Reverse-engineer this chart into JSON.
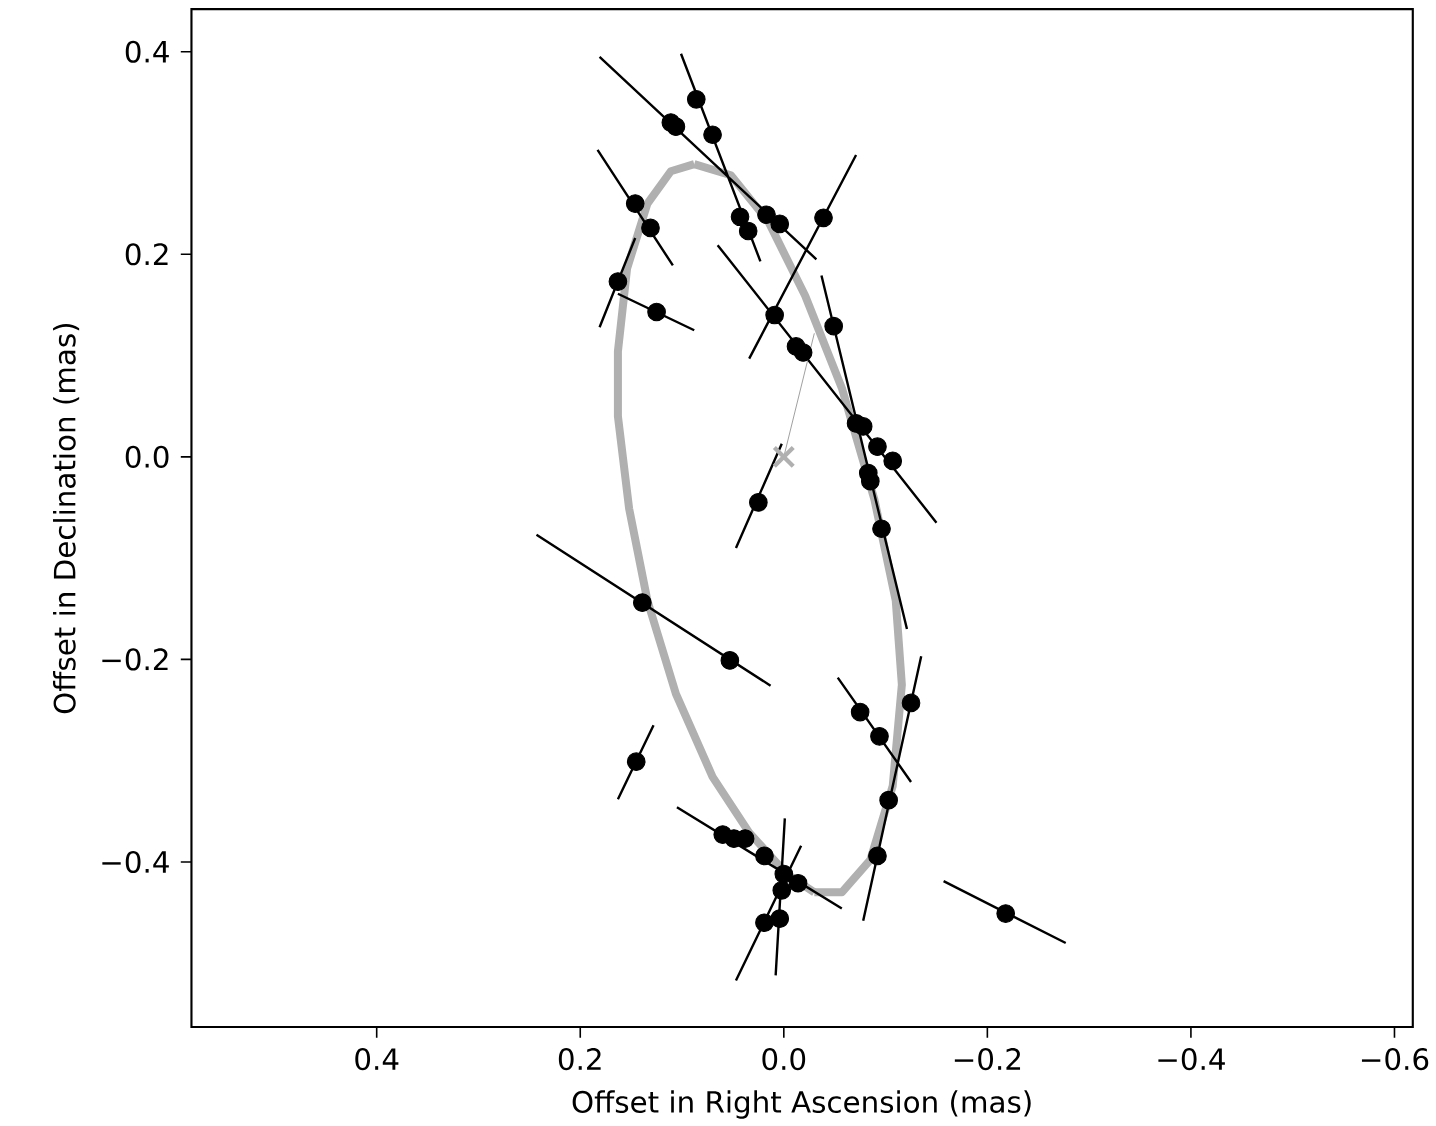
{
  "chart_data": {
    "type": "scatter",
    "xlabel": "Offset in Right Ascension (mas)",
    "ylabel": "Offset in Declination (mas)",
    "xlim": [
      0.582,
      -0.618
    ],
    "ylim": [
      -0.563,
      0.442
    ],
    "xticks": [
      {
        "value": 0.4,
        "label": "0.4"
      },
      {
        "value": 0.2,
        "label": "0.2"
      },
      {
        "value": 0.0,
        "label": "0.0"
      },
      {
        "value": -0.2,
        "label": "−0.2"
      },
      {
        "value": -0.4,
        "label": "−0.4"
      },
      {
        "value": -0.6,
        "label": "−0.6"
      }
    ],
    "yticks": [
      {
        "value": -0.4,
        "label": "−0.4"
      },
      {
        "value": -0.2,
        "label": "−0.2"
      },
      {
        "value": 0.0,
        "label": "0.0"
      },
      {
        "value": 0.2,
        "label": "0.2"
      },
      {
        "value": 0.4,
        "label": "0.4"
      }
    ],
    "series": [
      {
        "type": "line",
        "color": "#b0b0b0",
        "x": [
          0.088,
          0.052,
          0.015,
          -0.021,
          -0.057,
          -0.089,
          -0.11,
          -0.116,
          -0.107,
          -0.085,
          -0.057,
          -0.03
        ],
        "values": [
          0.289,
          0.278,
          0.232,
          0.159,
          0.068,
          -0.042,
          -0.142,
          -0.225,
          -0.325,
          -0.398,
          -0.43,
          -0.43
        ]
      },
      {
        "type": "line",
        "color": "#b0b0b0",
        "x": [
          -0.03,
          -0.003,
          0.034,
          0.07,
          0.106,
          0.134,
          0.152,
          0.163,
          0.163,
          0.154,
          0.134,
          0.111,
          0.088
        ],
        "values": [
          -0.43,
          -0.412,
          -0.371,
          -0.316,
          -0.234,
          -0.142,
          -0.051,
          0.04,
          0.104,
          0.186,
          0.25,
          0.282,
          0.289
        ]
      },
      {
        "type": "line",
        "color": "#000000",
        "x": [
          0.101,
          0.023,
          null,
          0.181,
          -0.032,
          null,
          0.034,
          -0.071,
          null,
          0.065,
          -0.15,
          null,
          0.183,
          0.109,
          null,
          0.181,
          0.146,
          null,
          0.163,
          0.088,
          null,
          -0.037,
          -0.121,
          null,
          0.047,
          0.002,
          null,
          0.243,
          0.013,
          null,
          -0.053,
          -0.125,
          null,
          -0.135,
          -0.078,
          null,
          0.163,
          0.128,
          null,
          0.105,
          -0.057,
          null,
          -0.001,
          0.008,
          null,
          0.047,
          -0.017,
          null,
          -0.157,
          -0.277
        ],
        "values": [
          0.398,
          0.193,
          null,
          0.395,
          0.195,
          null,
          0.097,
          0.298,
          null,
          0.209,
          -0.065,
          null,
          0.303,
          0.189,
          null,
          0.128,
          0.216,
          null,
          0.161,
          0.125,
          null,
          0.179,
          -0.17,
          null,
          -0.09,
          0.013,
          null,
          -0.077,
          -0.226,
          null,
          -0.218,
          -0.321,
          null,
          -0.197,
          -0.458,
          null,
          -0.338,
          -0.265,
          null,
          -0.346,
          -0.446,
          null,
          -0.357,
          -0.512,
          null,
          -0.517,
          -0.384,
          null,
          -0.419,
          -0.48
        ]
      },
      {
        "type": "line",
        "color": "#999999",
        "x": [
          0.0,
          -0.03
        ],
        "values": [
          0.0,
          0.122
        ]
      },
      {
        "marker": "circle",
        "color": "#000000",
        "x": [
          0.086,
          0.07,
          0.111,
          0.106,
          0.017,
          0.004,
          0.043,
          0.035,
          -0.039,
          0.009,
          0.146,
          0.131,
          0.163,
          0.125,
          -0.012,
          -0.019,
          -0.049,
          -0.071,
          -0.078,
          -0.092,
          -0.107,
          -0.083,
          -0.085,
          -0.096,
          0.025,
          0.139,
          0.053,
          -0.075,
          -0.094,
          -0.125,
          -0.103,
          -0.092,
          0.145,
          0.06,
          0.049,
          0.038,
          0.019,
          0.0,
          0.002,
          -0.014,
          0.019,
          0.004,
          -0.218
        ],
        "values": [
          0.353,
          0.318,
          0.33,
          0.326,
          0.239,
          0.23,
          0.237,
          0.223,
          0.236,
          0.14,
          0.25,
          0.226,
          0.173,
          0.143,
          0.109,
          0.103,
          0.129,
          0.033,
          0.03,
          0.01,
          -0.004,
          -0.016,
          -0.024,
          -0.071,
          -0.045,
          -0.144,
          -0.201,
          -0.252,
          -0.276,
          -0.243,
          -0.339,
          -0.394,
          -0.301,
          -0.373,
          -0.377,
          -0.377,
          -0.394,
          -0.412,
          -0.428,
          -0.421,
          -0.46,
          -0.456,
          -0.451
        ]
      },
      {
        "marker": "cross",
        "color": "#b0b0b0",
        "x": [
          0.0
        ],
        "values": [
          0.0
        ]
      }
    ]
  }
}
